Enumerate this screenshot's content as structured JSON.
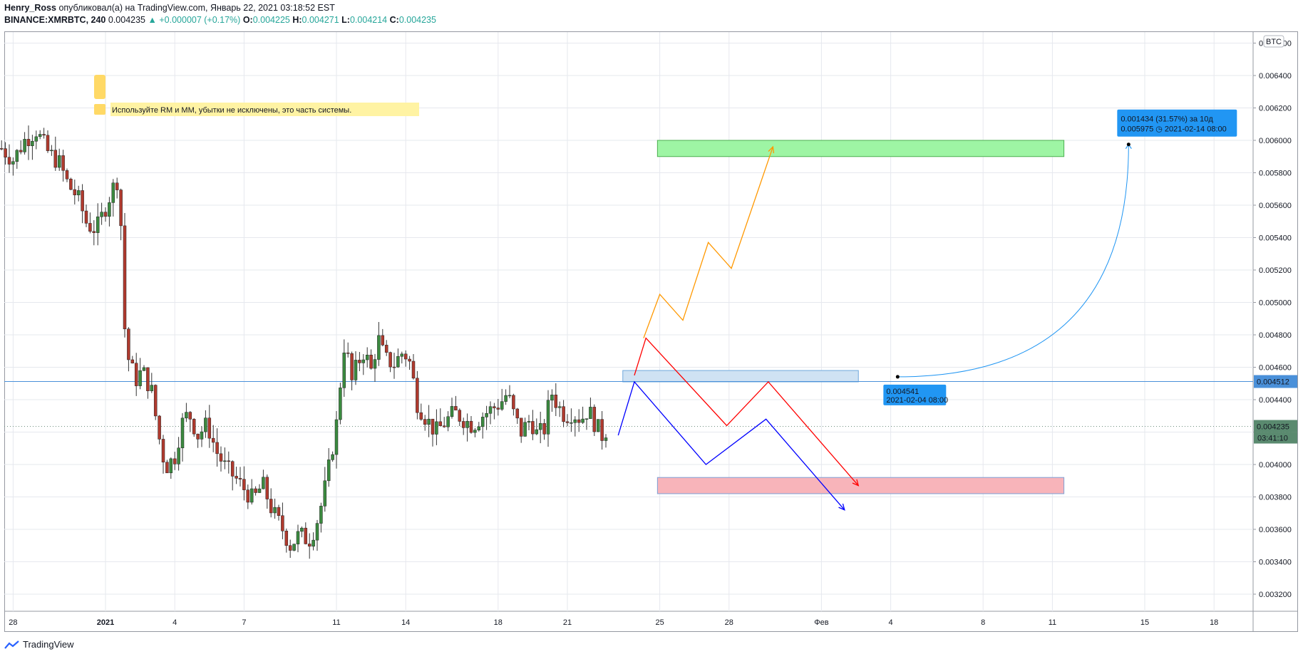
{
  "header": {
    "author": "Henry_Ross",
    "published_text": "опубликовал(а) на TradingView.com, Январь 22, 2021 03:18:52 EST",
    "symbol": "BINANCE:XMRBTC, 240",
    "last": "0.004235",
    "change": "+0.000007 (+0.17%)",
    "o_label": "O:",
    "o": "0.004225",
    "h_label": "H:",
    "h": "0.004271",
    "l_label": "L:",
    "l": "0.004214",
    "c_label": "C:",
    "c": "0.004235"
  },
  "footer": {
    "brand": "TradingView"
  },
  "chart_data": {
    "type": "candlestick",
    "currency_label": "BTC",
    "y_ticks": [
      "0.006600",
      "0.006400",
      "0.006200",
      "0.006000",
      "0.005800",
      "0.005600",
      "0.005400",
      "0.005200",
      "0.005000",
      "0.004800",
      "0.004600",
      "0.004400",
      "0.004200",
      "0.004000",
      "0.003800",
      "0.003600",
      "0.003400",
      "0.003200"
    ],
    "y_tick_values": [
      0.0066,
      0.0064,
      0.0062,
      0.006,
      0.0058,
      0.0056,
      0.0054,
      0.0052,
      0.005,
      0.0048,
      0.0046,
      0.0044,
      0.0042,
      0.004,
      0.0038,
      0.0036,
      0.0034,
      0.0032
    ],
    "x_ticks": [
      {
        "label": "28",
        "day": -4
      },
      {
        "label": "2021",
        "day": 0
      },
      {
        "label": "4",
        "day": 3
      },
      {
        "label": "7",
        "day": 6
      },
      {
        "label": "11",
        "day": 10
      },
      {
        "label": "14",
        "day": 13
      },
      {
        "label": "18",
        "day": 17
      },
      {
        "label": "21",
        "day": 20
      },
      {
        "label": "25",
        "day": 24
      },
      {
        "label": "28",
        "day": 27
      },
      {
        "label": "Фев",
        "day": 31
      },
      {
        "label": "4",
        "day": 34
      },
      {
        "label": "8",
        "day": 38
      },
      {
        "label": "11",
        "day": 41
      },
      {
        "label": "15",
        "day": 45
      },
      {
        "label": "18",
        "day": 48
      }
    ],
    "x_axis_unit": "days since 2021-01-01",
    "close_path": [
      [
        -4.5,
        0.00595
      ],
      [
        -4,
        0.00588
      ],
      [
        -3.5,
        0.006
      ],
      [
        -3,
        0.00606
      ],
      [
        -2.5,
        0.00593
      ],
      [
        -2,
        0.00586
      ],
      [
        -1.6,
        0.00572
      ],
      [
        -1.2,
        0.00565
      ],
      [
        -0.8,
        0.00548
      ],
      [
        -0.4,
        0.00545
      ],
      [
        -0.1,
        0.00555
      ],
      [
        0.3,
        0.0057
      ],
      [
        0.6,
        0.00578
      ],
      [
        0.8,
        0.00488
      ],
      [
        1.0,
        0.00465
      ],
      [
        1.3,
        0.00452
      ],
      [
        1.6,
        0.00458
      ],
      [
        2.0,
        0.00445
      ],
      [
        2.3,
        0.00418
      ],
      [
        2.6,
        0.00398
      ],
      [
        3.0,
        0.00405
      ],
      [
        3.3,
        0.00425
      ],
      [
        3.6,
        0.00432
      ],
      [
        4.0,
        0.00418
      ],
      [
        4.4,
        0.00425
      ],
      [
        4.8,
        0.00408
      ],
      [
        5.2,
        0.00398
      ],
      [
        5.6,
        0.00392
      ],
      [
        6.0,
        0.00385
      ],
      [
        6.4,
        0.00378
      ],
      [
        6.8,
        0.00388
      ],
      [
        7.2,
        0.00372
      ],
      [
        7.6,
        0.00362
      ],
      [
        8.0,
        0.0035
      ],
      [
        8.4,
        0.00357
      ],
      [
        8.8,
        0.00353
      ],
      [
        9.1,
        0.00362
      ],
      [
        9.4,
        0.00378
      ],
      [
        9.7,
        0.004
      ],
      [
        10.0,
        0.00425
      ],
      [
        10.2,
        0.00455
      ],
      [
        10.4,
        0.00482
      ],
      [
        10.6,
        0.00448
      ],
      [
        10.9,
        0.00462
      ],
      [
        11.2,
        0.0047
      ],
      [
        11.5,
        0.00458
      ],
      [
        11.8,
        0.00478
      ],
      [
        12.1,
        0.00465
      ],
      [
        12.5,
        0.00462
      ],
      [
        12.9,
        0.0047
      ],
      [
        13.2,
        0.00462
      ],
      [
        13.5,
        0.00438
      ],
      [
        13.9,
        0.00428
      ],
      [
        14.3,
        0.0042
      ],
      [
        14.7,
        0.00426
      ],
      [
        15.1,
        0.00432
      ],
      [
        15.5,
        0.00428
      ],
      [
        15.9,
        0.00424
      ],
      [
        16.3,
        0.0043
      ],
      [
        16.7,
        0.00434
      ],
      [
        17.1,
        0.00438
      ],
      [
        17.4,
        0.00444
      ],
      [
        17.7,
        0.0043
      ],
      [
        18.0,
        0.0042
      ],
      [
        18.4,
        0.00428
      ],
      [
        18.7,
        0.00418
      ],
      [
        19.0,
        0.00422
      ],
      [
        19.3,
        0.00445
      ],
      [
        19.6,
        0.00436
      ],
      [
        19.9,
        0.0043
      ],
      [
        20.2,
        0.00432
      ],
      [
        20.6,
        0.00428
      ],
      [
        20.9,
        0.00434
      ],
      [
        21.2,
        0.00425
      ],
      [
        21.5,
        0.00418
      ],
      [
        21.8,
        0.004235
      ]
    ],
    "horizontal_line": 0.004512,
    "last_price": 0.004235,
    "axis_labels": {
      "h_line": "0.004512",
      "last": "0.004235",
      "countdown": "03:41:10"
    },
    "zones": [
      {
        "name": "target",
        "color": "#9ef5a4",
        "border": "#4caf50",
        "x1": 23.9,
        "x2": 41.5,
        "y1": 0.006,
        "y2": 0.0059
      },
      {
        "name": "entry",
        "color": "#cfe2f3",
        "border": "#6fa8dc",
        "x1": 22.4,
        "x2": 32.6,
        "y1": 0.00458,
        "y2": 0.00451
      },
      {
        "name": "stop",
        "color": "#f8b4ba",
        "border": "#7da0d6",
        "x1": 23.9,
        "x2": 41.5,
        "y1": 0.00392,
        "y2": 0.00382
      }
    ],
    "projections": [
      {
        "color": "#ff9800",
        "arrow": true,
        "points": [
          [
            23.3,
            0.00478
          ],
          [
            24.0,
            0.00505
          ],
          [
            25.0,
            0.00489
          ],
          [
            26.1,
            0.00537
          ],
          [
            27.1,
            0.00521
          ],
          [
            28.9,
            0.00596
          ]
        ]
      },
      {
        "color": "#ff0000",
        "arrow": true,
        "points": [
          [
            22.9,
            0.00455
          ],
          [
            23.4,
            0.00478
          ],
          [
            26.9,
            0.00424
          ],
          [
            28.7,
            0.00451
          ],
          [
            32.6,
            0.00387
          ]
        ]
      },
      {
        "color": "#0000ff",
        "arrow": true,
        "points": [
          [
            22.2,
            0.00418
          ],
          [
            22.9,
            0.00451
          ],
          [
            26.0,
            0.004
          ],
          [
            28.6,
            0.00428
          ],
          [
            32.0,
            0.00372
          ]
        ]
      }
    ],
    "measure": {
      "start": [
        34.3,
        0.004541
      ],
      "end": [
        44.3,
        0.005975
      ],
      "start_label": "0.004541",
      "start_date": "2021-02-04 08:00",
      "end_line1": "0.001434 (31.57%) за 10д",
      "end_line2": "0.005975 ◷ 2021-02-14  08:00"
    },
    "note": "Используйте RM и MM, убытки не исключены, это часть системы."
  }
}
